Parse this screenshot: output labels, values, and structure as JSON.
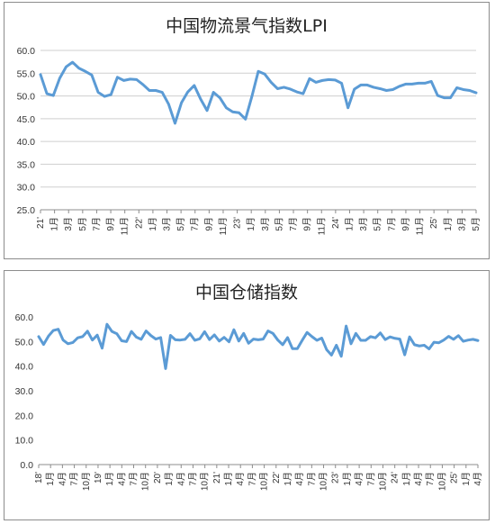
{
  "chart_data": [
    {
      "type": "line",
      "title": "中国物流景气指数LPI",
      "xlabel": "",
      "ylabel": "",
      "ylim": [
        25,
        60
      ],
      "yticks": [
        "25.0",
        "30.0",
        "35.0",
        "40.0",
        "45.0",
        "50.0",
        "55.0",
        "60.0"
      ],
      "grid": true,
      "color": "#5b9bd5",
      "x_tick_labels": [
        "21'",
        "1月",
        "3月",
        "5月",
        "7月",
        "9月",
        "11月",
        "22'",
        "1月",
        "3月",
        "5月",
        "7月",
        "9月",
        "11月",
        "23'",
        "1月",
        "3月",
        "5月",
        "7月",
        "9月",
        "11月",
        "24'",
        "1月",
        "3月",
        "5月",
        "7月",
        "9月",
        "11月",
        "25'",
        "1月",
        "3月",
        "5月"
      ],
      "values": [
        54.7,
        50.5,
        50.1,
        53.9,
        56.4,
        57.4,
        56.1,
        55.4,
        54.6,
        50.8,
        49.9,
        50.3,
        54.1,
        53.4,
        53.7,
        53.6,
        52.5,
        51.2,
        51.2,
        50.8,
        48.2,
        44.0,
        48.5,
        50.9,
        52.3,
        49.3,
        46.8,
        50.8,
        49.6,
        47.4,
        46.5,
        46.3,
        44.9,
        49.9,
        55.4,
        54.8,
        53.0,
        51.6,
        51.9,
        51.5,
        50.9,
        50.5,
        53.8,
        53.0,
        53.4,
        53.6,
        53.5,
        52.8,
        47.4,
        51.5,
        52.4,
        52.4,
        51.9,
        51.6,
        51.2,
        51.4,
        52.1,
        52.6,
        52.6,
        52.8,
        52.8,
        53.2,
        50.1,
        49.6,
        49.6,
        51.8,
        51.4,
        51.2,
        50.7
      ]
    },
    {
      "type": "line",
      "title": "中国仓储指数",
      "xlabel": "",
      "ylabel": "",
      "ylim": [
        0,
        60
      ],
      "yticks": [
        "0.0",
        "10.0",
        "20.0",
        "30.0",
        "40.0",
        "50.0",
        "60.0"
      ],
      "grid": false,
      "color": "#5b9bd5",
      "x_tick_labels": [
        "18'",
        "1月",
        "4月",
        "7月",
        "10月",
        "19'",
        "1月",
        "4月",
        "7月",
        "10月",
        "20'",
        "1月",
        "4月",
        "7月",
        "10月",
        "21'",
        "1月",
        "4月",
        "7月",
        "10月",
        "22'",
        "1月",
        "4月",
        "7月",
        "10月",
        "23'",
        "1月",
        "4月",
        "7月",
        "10月",
        "24'",
        "1月",
        "4月",
        "7月",
        "10月",
        "25'",
        "1月",
        "4月"
      ],
      "values": [
        52.0,
        48.8,
        52.2,
        54.5,
        55.0,
        50.6,
        49.1,
        49.6,
        51.5,
        52.0,
        54.2,
        50.6,
        52.6,
        47.3,
        57.0,
        54.1,
        53.2,
        50.3,
        50.0,
        54.1,
        51.8,
        50.9,
        54.3,
        52.4,
        51.0,
        51.6,
        39.0,
        52.5,
        50.7,
        50.6,
        50.9,
        53.2,
        50.5,
        51.1,
        54.0,
        50.8,
        52.7,
        50.2,
        51.7,
        49.9,
        54.8,
        50.2,
        53.3,
        49.3,
        51.0,
        50.7,
        51.0,
        54.3,
        53.3,
        50.6,
        48.7,
        51.6,
        47.1,
        47.1,
        50.5,
        53.7,
        52.0,
        50.5,
        51.4,
        46.7,
        44.5,
        48.5,
        44.0,
        56.3,
        49.1,
        53.3,
        50.5,
        50.5,
        52.0,
        51.5,
        53.5,
        50.8,
        51.9,
        51.3,
        51.0,
        44.6,
        51.9,
        48.7,
        48.2,
        48.5,
        47.0,
        49.7,
        49.5,
        50.6,
        52.1,
        50.9,
        52.4,
        50.1,
        50.6,
        50.9,
        50.4
      ]
    }
  ]
}
